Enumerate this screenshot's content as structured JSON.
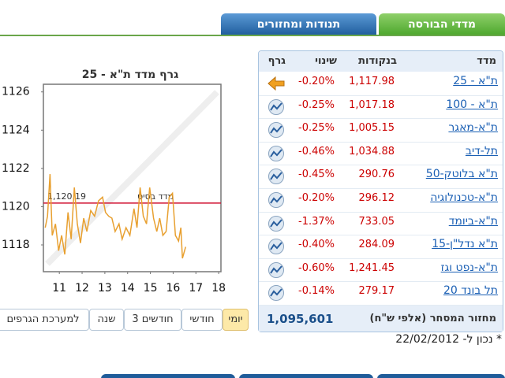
{
  "tabs": [
    "מדדי הבורסה",
    "תנודות ומחזורים"
  ],
  "chart_data": {
    "type": "line",
    "title": "גרף מדד ת\"א - 25",
    "color": "#e8a030",
    "x": [
      10.38,
      10.48,
      10.59,
      10.69,
      10.83,
      10.97,
      11.1,
      11.24,
      11.38,
      11.52,
      11.66,
      11.79,
      11.93,
      12.07,
      12.21,
      12.38,
      12.55,
      12.72,
      12.9,
      13.03,
      13.17,
      13.31,
      13.45,
      13.62,
      13.76,
      13.93,
      14.1,
      14.28,
      14.41,
      14.55,
      14.69,
      14.83,
      14.97,
      15.14,
      15.28,
      15.41,
      15.55,
      15.69,
      15.83,
      15.97,
      16.1,
      16.24,
      16.34,
      16.41,
      16.55
    ],
    "values": [
      1118.9,
      1119.5,
      1121.7,
      1118.5,
      1119.1,
      1117.7,
      1118.5,
      1117.5,
      1119.7,
      1118.3,
      1121.0,
      1119.1,
      1118.1,
      1119.4,
      1118.7,
      1119.8,
      1119.5,
      1120.3,
      1120.5,
      1119.7,
      1119.5,
      1119.4,
      1118.7,
      1119.1,
      1118.3,
      1118.9,
      1118.5,
      1119.9,
      1118.9,
      1121.0,
      1119.5,
      1119.1,
      1121.0,
      1119.4,
      1118.7,
      1119.4,
      1118.5,
      1118.7,
      1120.5,
      1120.7,
      1118.5,
      1118.2,
      1118.9,
      1117.3,
      1117.9
    ],
    "xlim": [
      10.3,
      18.1
    ],
    "ylim": [
      1116.6,
      1126.4
    ],
    "xticks": [
      11,
      12,
      13,
      14,
      15,
      16,
      17,
      18
    ],
    "yticks": [
      1118,
      1120,
      1122,
      1124,
      1126
    ],
    "baseline": {
      "label": "מדד בסיס",
      "value": 1120.19,
      "value_label": "1,120.19",
      "color": "#d01030"
    }
  },
  "buttons": [
    "יומי",
    "חודשי",
    "3 חודשים",
    "שנה",
    "למערכת הגרפים"
  ],
  "table": {
    "headers": [
      "מדד",
      "בנקודות",
      "שינוי",
      "גרף"
    ],
    "rows": [
      [
        "ת\"א - 25",
        "1,117.98",
        "-0.20%"
      ],
      [
        "ת\"א - 100",
        "1,017.18",
        "-0.25%"
      ],
      [
        "ת\"א-מאגר",
        "1,005.15",
        "-0.25%"
      ],
      [
        "תל-דיב",
        "1,034.88",
        "-0.46%"
      ],
      [
        "ת\"א בלוטק-50",
        "290.76",
        "-0.45%"
      ],
      [
        "ת\"א-טכנולוגיה",
        "296.12",
        "-0.20%"
      ],
      [
        "ת\"א-ביומד",
        "733.05",
        "-1.37%"
      ],
      [
        "ת\"א נדל\"ן-15",
        "284.09",
        "-0.40%"
      ],
      [
        "ת\"א-נפט וגז",
        "1,241.45",
        "-0.60%"
      ],
      [
        "תל בונד 20",
        "279.17",
        "-0.14%"
      ]
    ]
  },
  "turnover": {
    "label": "מחזור המסחר (אלפי ש\"ח)",
    "value": "1,095,601"
  },
  "note": "* נכון ל- 22/02/2012"
}
